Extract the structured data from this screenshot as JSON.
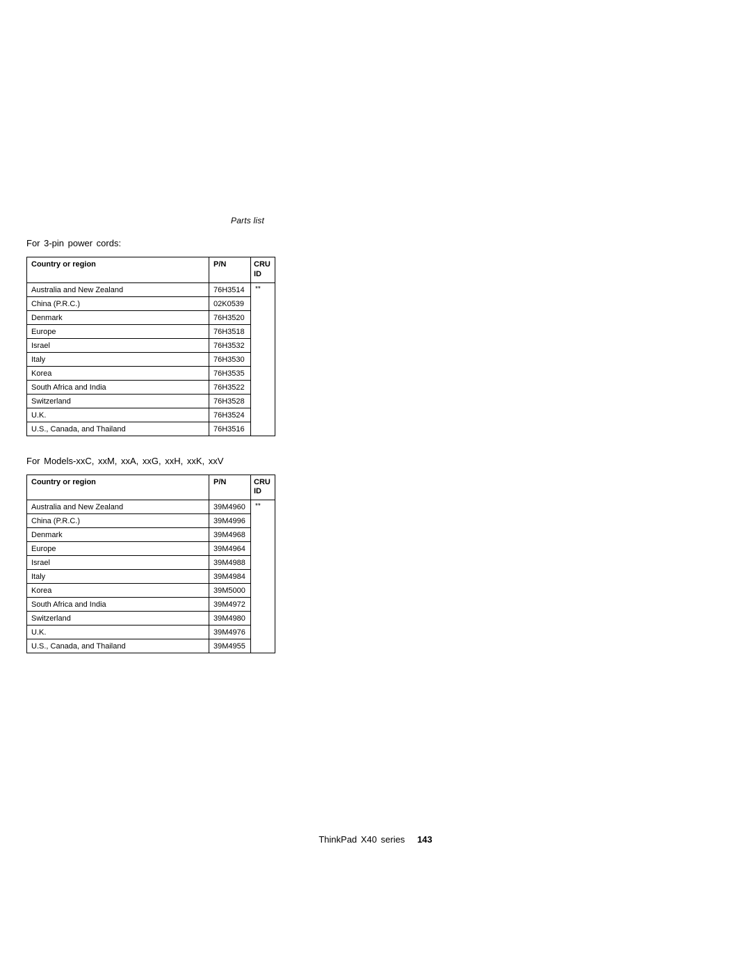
{
  "header": {
    "section_label": "Parts list"
  },
  "section1": {
    "intro": "For 3-pin power cords:",
    "columns": {
      "c1": "Country or region",
      "c2": "P/N",
      "c3": "CRU ID"
    },
    "cru_marker": "**",
    "rows": [
      {
        "country": "Australia and New Zealand",
        "pn": "76H3514"
      },
      {
        "country": "China (P.R.C.)",
        "pn": "02K0539"
      },
      {
        "country": "Denmark",
        "pn": "76H3520"
      },
      {
        "country": "Europe",
        "pn": "76H3518"
      },
      {
        "country": "Israel",
        "pn": "76H3532"
      },
      {
        "country": "Italy",
        "pn": "76H3530"
      },
      {
        "country": "Korea",
        "pn": "76H3535"
      },
      {
        "country": "South Africa and India",
        "pn": "76H3522"
      },
      {
        "country": "Switzerland",
        "pn": "76H3528"
      },
      {
        "country": "U.K.",
        "pn": "76H3524"
      },
      {
        "country": "U.S., Canada, and Thailand",
        "pn": "76H3516"
      }
    ]
  },
  "section2": {
    "intro": "For Models-xxC, xxM, xxA, xxG, xxH, xxK, xxV",
    "columns": {
      "c1": "Country or region",
      "c2": "P/N",
      "c3": "CRU ID"
    },
    "cru_marker": "**",
    "rows": [
      {
        "country": "Australia and New Zealand",
        "pn": "39M4960"
      },
      {
        "country": "China (P.R.C.)",
        "pn": "39M4996"
      },
      {
        "country": "Denmark",
        "pn": "39M4968"
      },
      {
        "country": "Europe",
        "pn": "39M4964"
      },
      {
        "country": "Israel",
        "pn": "39M4988"
      },
      {
        "country": "Italy",
        "pn": "39M4984"
      },
      {
        "country": "Korea",
        "pn": "39M5000"
      },
      {
        "country": "South Africa and India",
        "pn": "39M4972"
      },
      {
        "country": "Switzerland",
        "pn": "39M4980"
      },
      {
        "country": "U.K.",
        "pn": "39M4976"
      },
      {
        "country": "U.S., Canada, and Thailand",
        "pn": "39M4955"
      }
    ]
  },
  "footer": {
    "label": "ThinkPad X40 series",
    "page": "143"
  }
}
